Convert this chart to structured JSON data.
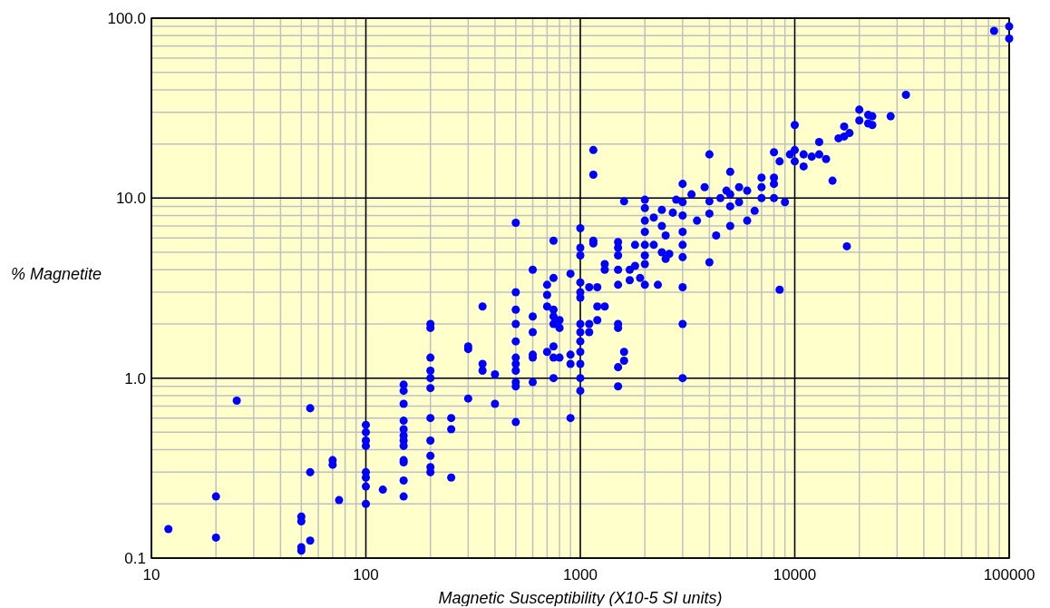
{
  "chart_data": {
    "type": "scatter",
    "xlabel": "Magnetic   Susceptibility (X10-5 SI units)",
    "ylabel": "% Magnetite",
    "log": "xy",
    "grid": true,
    "marker": "circle",
    "xlim": [
      10,
      100000
    ],
    "xticks": [
      10,
      100,
      1000,
      10000,
      100000
    ],
    "ylim": [
      0.1,
      100
    ],
    "yticks": [
      {
        "value": 0.1,
        "label": "0.1"
      },
      {
        "value": 1,
        "label": "1.0"
      },
      {
        "value": 10,
        "label": "10.0"
      },
      {
        "value": 100,
        "label": "100.0"
      }
    ],
    "series": [
      {
        "color": "#0000ff",
        "x": [
          12,
          20,
          20,
          25,
          50,
          50,
          50,
          50,
          55,
          55,
          55,
          70,
          70,
          75,
          100,
          100,
          100,
          100,
          100,
          100,
          100,
          100,
          120,
          150,
          150,
          150,
          150,
          150,
          150,
          150,
          150,
          150,
          150,
          150,
          150,
          200,
          200,
          200,
          200,
          200,
          200,
          200,
          200,
          200,
          200,
          200,
          250,
          250,
          250,
          300,
          300,
          300,
          350,
          350,
          350,
          400,
          400,
          500,
          500,
          500,
          500,
          500,
          500,
          500,
          500,
          500,
          500,
          500,
          600,
          600,
          600,
          600,
          600,
          600,
          700,
          700,
          700,
          700,
          750,
          750,
          750,
          750,
          750,
          750,
          750,
          750,
          800,
          800,
          800,
          900,
          900,
          900,
          900,
          1000,
          1000,
          1000,
          1000,
          1000,
          1000,
          1000,
          1000,
          1000,
          1000,
          1000,
          1000,
          1000,
          1100,
          1100,
          1100,
          1150,
          1150,
          1150,
          1150,
          1200,
          1200,
          1200,
          1300,
          1300,
          1300,
          1500,
          1500,
          1500,
          1500,
          1500,
          1500,
          1500,
          1500,
          1500,
          1600,
          1600,
          1600,
          1700,
          1700,
          1800,
          1800,
          1900,
          2000,
          2000,
          2000,
          2000,
          2000,
          2000,
          2000,
          2000,
          2200,
          2200,
          2300,
          2400,
          2400,
          2400,
          2500,
          2500,
          2600,
          2700,
          2800,
          3000,
          3000,
          3000,
          3000,
          3000,
          3000,
          3000,
          3000,
          3000,
          3300,
          3500,
          3800,
          4000,
          4000,
          4000,
          4000,
          4300,
          4500,
          4800,
          5000,
          5000,
          5000,
          5000,
          5500,
          5500,
          6000,
          6000,
          6500,
          7000,
          7000,
          7000,
          8000,
          8000,
          8000,
          8000,
          8500,
          8500,
          9000,
          9500,
          10000,
          10000,
          10000,
          11000,
          11000,
          12000,
          13000,
          13000,
          14000,
          15000,
          16000,
          17000,
          17000,
          17500,
          18000,
          20000,
          20000,
          22000,
          22000,
          23000,
          23000,
          28000,
          33000,
          85000,
          100000,
          100000
        ],
        "values": [
          0.145,
          0.22,
          0.13,
          0.75,
          0.17,
          0.16,
          0.115,
          0.11,
          0.68,
          0.3,
          0.125,
          0.35,
          0.33,
          0.21,
          0.55,
          0.5,
          0.45,
          0.42,
          0.3,
          0.28,
          0.25,
          0.2,
          0.24,
          0.92,
          0.85,
          0.72,
          0.58,
          0.52,
          0.48,
          0.45,
          0.42,
          0.35,
          0.34,
          0.27,
          0.22,
          2.0,
          1.9,
          1.3,
          1.1,
          1.0,
          0.88,
          0.6,
          0.45,
          0.37,
          0.32,
          0.3,
          0.6,
          0.52,
          0.28,
          1.5,
          1.45,
          0.77,
          2.5,
          1.2,
          1.1,
          1.05,
          0.72,
          7.3,
          3.0,
          2.4,
          2.0,
          1.6,
          1.3,
          1.2,
          1.1,
          0.95,
          0.9,
          0.57,
          4.0,
          2.2,
          1.8,
          1.35,
          1.3,
          0.95,
          3.3,
          2.9,
          2.5,
          1.4,
          5.8,
          3.6,
          2.4,
          2.2,
          2.0,
          1.5,
          1.3,
          1.0,
          2.1,
          1.9,
          1.3,
          3.8,
          1.35,
          1.2,
          0.6,
          6.8,
          5.3,
          4.8,
          3.4,
          3.0,
          2.8,
          2.0,
          1.8,
          1.6,
          1.4,
          1.2,
          1.0,
          0.85,
          3.2,
          2.0,
          1.8,
          18.5,
          13.5,
          5.8,
          5.6,
          3.2,
          2.5,
          2.1,
          4.3,
          4.0,
          2.5,
          5.7,
          5.3,
          4.8,
          4.0,
          3.3,
          2.0,
          1.9,
          1.15,
          0.9,
          9.6,
          1.4,
          1.25,
          4.0,
          3.5,
          5.5,
          4.2,
          3.6,
          9.8,
          8.8,
          7.5,
          6.5,
          5.5,
          4.8,
          4.3,
          3.3,
          7.8,
          5.5,
          3.3,
          8.6,
          7.0,
          5.0,
          6.2,
          4.6,
          4.9,
          8.3,
          9.8,
          12.0,
          9.5,
          8.0,
          6.5,
          5.5,
          4.7,
          3.2,
          2.0,
          1.0,
          10.5,
          7.5,
          11.5,
          17.5,
          9.6,
          8.2,
          4.4,
          6.2,
          10.0,
          11.0,
          14.0,
          10.5,
          9.0,
          7.0,
          11.5,
          9.5,
          11.0,
          7.5,
          8.5,
          13.0,
          11.5,
          10.0,
          18.0,
          13.0,
          12.0,
          10.0,
          3.1,
          16.0,
          9.5,
          17.5,
          25.5,
          18.5,
          16.0,
          15.0,
          17.5,
          17.0,
          20.5,
          17.5,
          16.5,
          12.5,
          21.5,
          25.0,
          22.0,
          5.4,
          23.0,
          31.0,
          27.0,
          29.0,
          26.0,
          28.5,
          25.5,
          28.5,
          37.5,
          85,
          90,
          77
        ]
      }
    ]
  }
}
